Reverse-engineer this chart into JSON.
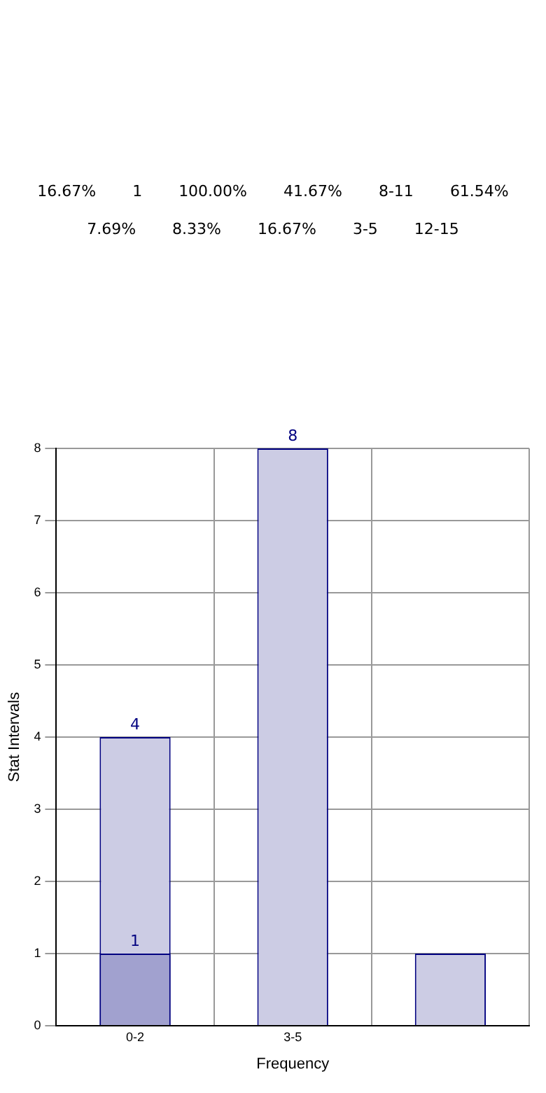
{
  "chart_data": [
    {
      "type": "other",
      "annotations": [
        "16.67%",
        "1",
        "100.00%",
        "41.67%",
        "8-11",
        "61.54%",
        "7.69%",
        "8.33%",
        "16.67%",
        "3-5",
        "12-15"
      ]
    },
    {
      "type": "bar",
      "xlabel": "Frequency",
      "ylabel": "Stat Intervals",
      "categories": [
        "0-2",
        "3-5",
        null
      ],
      "series": [
        {
          "color": "#cccce4",
          "values": [
            4,
            8,
            1
          ],
          "value_labels": [
            "4",
            "8",
            null
          ]
        },
        {
          "color": "#a1a1cf",
          "values": [
            1,
            null,
            null
          ],
          "value_labels": [
            "1",
            null,
            null
          ]
        }
      ],
      "ylim": [
        0,
        8
      ],
      "yticks": [
        0,
        1,
        2,
        3,
        4,
        5,
        6,
        7,
        8
      ],
      "grid": true,
      "legend": false
    }
  ]
}
